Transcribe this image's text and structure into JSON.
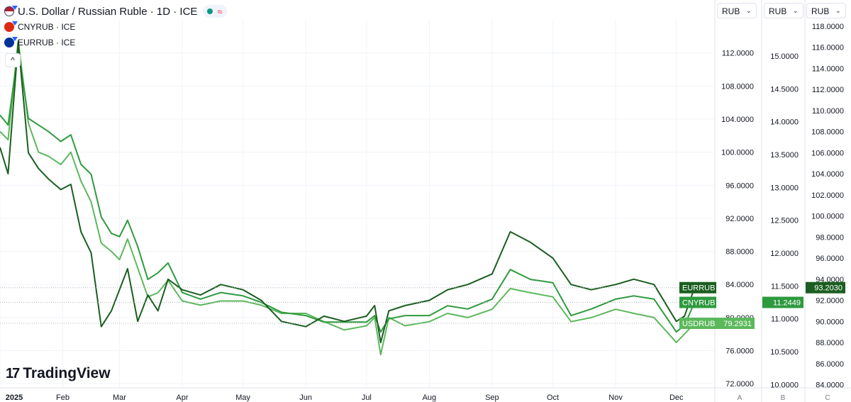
{
  "legend": {
    "title": "U.S. Dollar / Russian Ruble · 1D · ICE",
    "status_symbol": "≈",
    "sub1": "CNYRUB · ICE",
    "sub2": "EURRUB · ICE",
    "collapse": "^"
  },
  "currency_selectors": [
    "RUB",
    "RUB",
    "RUB"
  ],
  "logo_text": "TradingView",
  "colors": {
    "usdrub": "#5cb85c",
    "cnyrub": "#2e9a3e",
    "eurrub": "#1a5e1f",
    "grid": "#f0f3fa"
  },
  "chart_data": {
    "type": "line",
    "x_tick_labels": [
      "2025",
      "Feb",
      "Mar",
      "Apr",
      "May",
      "Jun",
      "Jul",
      "Aug",
      "Sep",
      "Oct",
      "Nov",
      "Dec"
    ],
    "axes": {
      "A": {
        "ticks": [
          "72.0000",
          "76.0000",
          "80.0000",
          "84.0000",
          "88.0000",
          "92.0000",
          "96.0000",
          "100.0000",
          "104.0000",
          "108.0000",
          "112.0000"
        ],
        "range": [
          71.5,
          116
        ]
      },
      "B": {
        "ticks": [
          "10.0000",
          "10.5000",
          "11.0000",
          "11.5000",
          "12.0000",
          "12.5000",
          "13.0000",
          "13.5000",
          "14.0000",
          "14.5000",
          "15.0000"
        ],
        "range": [
          9.95,
          15.55
        ]
      },
      "C": {
        "ticks": [
          "84.0000",
          "86.0000",
          "88.0000",
          "90.0000",
          "92.0000",
          "94.0000",
          "96.0000",
          "98.0000",
          "100.0000",
          "102.0000",
          "104.0000",
          "106.0000",
          "108.0000",
          "110.0000",
          "112.0000",
          "114.0000",
          "116.0000",
          "118.0000"
        ],
        "range": [
          83.7,
          118.6
        ]
      }
    },
    "axis_footer": [
      "A",
      "B",
      "C"
    ],
    "series": [
      {
        "name": "USDRUB",
        "axis": "A",
        "last_value_label": "79.2931",
        "x": [
          "2025-01-01",
          "2025-01-05",
          "2025-01-10",
          "2025-01-15",
          "2025-01-20",
          "2025-01-25",
          "2025-01-31",
          "2025-02-05",
          "2025-02-10",
          "2025-02-15",
          "2025-02-20",
          "2025-02-25",
          "2025-03-01",
          "2025-03-05",
          "2025-03-10",
          "2025-03-15",
          "2025-03-20",
          "2025-03-25",
          "2025-04-01",
          "2025-04-10",
          "2025-04-20",
          "2025-05-01",
          "2025-05-10",
          "2025-05-20",
          "2025-06-01",
          "2025-06-10",
          "2025-06-20",
          "2025-07-01",
          "2025-07-05",
          "2025-07-08",
          "2025-07-12",
          "2025-07-20",
          "2025-08-01",
          "2025-08-10",
          "2025-08-20",
          "2025-09-01",
          "2025-09-10",
          "2025-09-20",
          "2025-10-01",
          "2025-10-10",
          "2025-10-20",
          "2025-11-01",
          "2025-11-10",
          "2025-11-20",
          "2025-12-01",
          "2025-12-05",
          "2025-12-10"
        ],
        "values": [
          102.5,
          101.5,
          113.5,
          103.5,
          100.0,
          99.5,
          98.5,
          100.0,
          96.5,
          94.0,
          89.0,
          88.0,
          87.0,
          89.5,
          86.0,
          82.5,
          83.0,
          84.5,
          82.0,
          81.5,
          82.0,
          82.0,
          81.5,
          80.5,
          80.5,
          79.5,
          78.5,
          79.0,
          80.0,
          75.5,
          80.0,
          79.0,
          79.5,
          80.5,
          80.0,
          81.0,
          83.5,
          83.0,
          82.5,
          79.5,
          80.0,
          81.0,
          80.5,
          80.0,
          77.0,
          78.0,
          79.3
        ]
      },
      {
        "name": "CNYRUB",
        "axis": "B",
        "last_value_label": "11.2449",
        "x": [
          "2025-01-01",
          "2025-01-05",
          "2025-01-10",
          "2025-01-15",
          "2025-01-20",
          "2025-01-25",
          "2025-01-31",
          "2025-02-05",
          "2025-02-10",
          "2025-02-15",
          "2025-02-20",
          "2025-02-25",
          "2025-03-01",
          "2025-03-05",
          "2025-03-10",
          "2025-03-15",
          "2025-03-20",
          "2025-03-25",
          "2025-04-01",
          "2025-04-10",
          "2025-04-20",
          "2025-05-01",
          "2025-05-10",
          "2025-05-20",
          "2025-06-01",
          "2025-06-10",
          "2025-06-20",
          "2025-07-01",
          "2025-07-05",
          "2025-07-08",
          "2025-07-12",
          "2025-07-20",
          "2025-08-01",
          "2025-08-10",
          "2025-08-20",
          "2025-09-01",
          "2025-09-10",
          "2025-09-20",
          "2025-10-01",
          "2025-10-10",
          "2025-10-20",
          "2025-11-01",
          "2025-11-10",
          "2025-11-20",
          "2025-12-01",
          "2025-12-05",
          "2025-12-10"
        ],
        "values": [
          14.1,
          13.95,
          15.1,
          14.05,
          13.95,
          13.85,
          13.7,
          13.8,
          13.35,
          13.2,
          12.55,
          12.3,
          12.25,
          12.5,
          12.1,
          11.6,
          11.7,
          11.85,
          11.4,
          11.3,
          11.4,
          11.35,
          11.25,
          11.1,
          11.05,
          10.95,
          10.95,
          10.95,
          11.05,
          10.8,
          11.0,
          11.05,
          11.05,
          11.2,
          11.15,
          11.3,
          11.75,
          11.6,
          11.55,
          11.05,
          11.15,
          11.3,
          11.35,
          11.3,
          10.8,
          10.9,
          11.25
        ]
      },
      {
        "name": "EURRUB",
        "axis": "C",
        "last_value_label": "93.2030",
        "x": [
          "2025-01-01",
          "2025-01-05",
          "2025-01-10",
          "2025-01-15",
          "2025-01-20",
          "2025-01-25",
          "2025-01-31",
          "2025-02-05",
          "2025-02-10",
          "2025-02-15",
          "2025-02-20",
          "2025-02-25",
          "2025-03-01",
          "2025-03-05",
          "2025-03-10",
          "2025-03-15",
          "2025-03-20",
          "2025-03-25",
          "2025-04-01",
          "2025-04-10",
          "2025-04-20",
          "2025-05-01",
          "2025-05-10",
          "2025-05-20",
          "2025-06-01",
          "2025-06-10",
          "2025-06-20",
          "2025-07-01",
          "2025-07-05",
          "2025-07-08",
          "2025-07-12",
          "2025-07-20",
          "2025-08-01",
          "2025-08-10",
          "2025-08-20",
          "2025-09-01",
          "2025-09-10",
          "2025-09-20",
          "2025-10-01",
          "2025-10-10",
          "2025-10-20",
          "2025-11-01",
          "2025-11-10",
          "2025-11-20",
          "2025-12-01",
          "2025-12-05",
          "2025-12-10"
        ],
        "values": [
          106.5,
          104.0,
          116.5,
          106.0,
          104.5,
          103.5,
          102.5,
          103.0,
          98.5,
          96.5,
          89.5,
          91.0,
          93.0,
          95.0,
          90.0,
          92.5,
          91.0,
          94.0,
          93.0,
          92.5,
          93.5,
          93.0,
          92.0,
          90.0,
          89.5,
          90.5,
          90.0,
          90.5,
          91.5,
          88.0,
          91.0,
          91.5,
          92.0,
          93.0,
          93.5,
          94.5,
          98.5,
          97.5,
          96.0,
          93.5,
          93.0,
          93.5,
          94.0,
          93.5,
          90.0,
          90.5,
          93.2
        ]
      }
    ],
    "grid": true
  }
}
